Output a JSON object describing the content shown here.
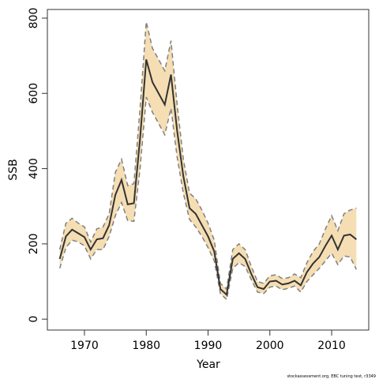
{
  "chart_data": {
    "type": "line",
    "x_label": "Year",
    "y_label": "SSB",
    "annotation": "stockassessment.org, EBC tuning test, r3349",
    "x": [
      1966,
      1967,
      1968,
      1969,
      1970,
      1971,
      1972,
      1973,
      1974,
      1975,
      1976,
      1977,
      1978,
      1979,
      1980,
      1981,
      1982,
      1983,
      1984,
      1985,
      1986,
      1987,
      1988,
      1989,
      1990,
      1991,
      1992,
      1993,
      1994,
      1995,
      1996,
      1997,
      1998,
      1999,
      2000,
      2001,
      2002,
      2003,
      2004,
      2005,
      2006,
      2007,
      2008,
      2009,
      2010,
      2011,
      2012,
      2013,
      2014
    ],
    "series": [
      {
        "color": "#333333",
        "values": [
          160,
          220,
          238,
          228,
          218,
          185,
          212,
          215,
          250,
          330,
          370,
          305,
          308,
          480,
          690,
          630,
          600,
          570,
          650,
          500,
          380,
          295,
          280,
          250,
          220,
          180,
          80,
          65,
          160,
          175,
          160,
          120,
          85,
          80,
          100,
          102,
          92,
          95,
          102,
          90,
          125,
          148,
          165,
          195,
          222,
          185,
          222,
          225,
          212
        ]
      }
    ],
    "band": {
      "fill": "#f5deb3",
      "edge": "#808080",
      "upper": [
        185,
        255,
        268,
        255,
        245,
        205,
        240,
        245,
        280,
        390,
        425,
        355,
        360,
        560,
        790,
        720,
        690,
        660,
        740,
        570,
        425,
        335,
        320,
        290,
        255,
        210,
        95,
        80,
        185,
        200,
        185,
        140,
        100,
        95,
        115,
        118,
        108,
        110,
        120,
        110,
        150,
        180,
        200,
        240,
        275,
        235,
        280,
        290,
        295
      ],
      "lower": [
        135,
        190,
        210,
        205,
        195,
        160,
        185,
        185,
        220,
        275,
        310,
        262,
        260,
        400,
        590,
        550,
        520,
        490,
        560,
        430,
        335,
        265,
        245,
        220,
        190,
        155,
        68,
        52,
        135,
        150,
        140,
        105,
        72,
        68,
        85,
        88,
        78,
        82,
        88,
        72,
        100,
        118,
        135,
        155,
        175,
        145,
        168,
        165,
        132
      ]
    },
    "xlim": [
      1964,
      2016
    ],
    "ylim": [
      -29,
      823
    ],
    "xticks": [
      1970,
      1980,
      1990,
      2000,
      2010
    ],
    "yticks": [
      0,
      200,
      400,
      600,
      800
    ]
  }
}
